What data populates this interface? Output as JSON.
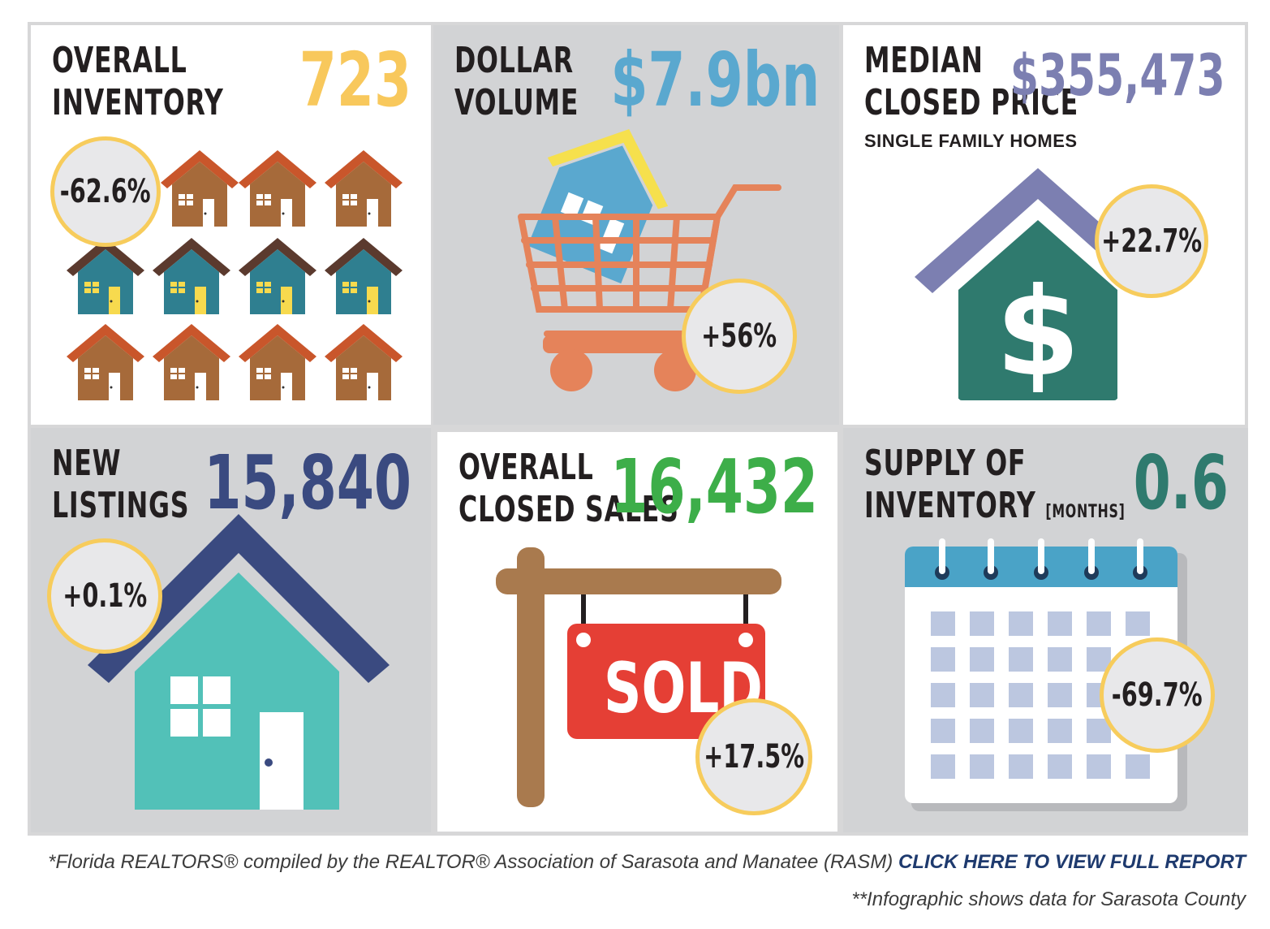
{
  "colors": {
    "inventory": "#f8c85c",
    "dollar": "#5aa8cf",
    "median": "#7c7fb1",
    "listings": "#3a4a80",
    "sales": "#3dae49",
    "supply": "#2f7a6e",
    "badge_border": "#f7cc5c",
    "link": "#1e3a6e"
  },
  "panels": {
    "inventory": {
      "title_line1": "OVERALL",
      "title_line2": "INVENTORY",
      "value": "723",
      "change": "-62.6%",
      "icon": "houses-grid-icon"
    },
    "dollar": {
      "title_line1": "DOLLAR",
      "title_line2": "VOLUME",
      "value": "$7.9bn",
      "change": "+56%",
      "icon": "shopping-cart-house-icon"
    },
    "median": {
      "title_line1": "MEDIAN",
      "title_line2": "CLOSED PRICE",
      "subtitle": "SINGLE FAMILY HOMES",
      "value": "$355,473",
      "change": "+22.7%",
      "icon": "house-dollar-icon"
    },
    "listings": {
      "title_line1": "NEW",
      "title_line2": "LISTINGS",
      "value": "15,840",
      "change": "+0.1%",
      "icon": "house-icon"
    },
    "sales": {
      "title_line1": "OVERALL",
      "title_line2": "CLOSED SALES",
      "value": "16,432",
      "change": "+17.5%",
      "sign_text": "SOLD",
      "icon": "sold-sign-icon"
    },
    "supply": {
      "title_line1": "SUPPLY OF",
      "title_line2": "INVENTORY",
      "title_suffix": "[MONTHS]",
      "value": "0.6",
      "change": "-69.7%",
      "icon": "calendar-icon"
    }
  },
  "footer": {
    "source_text": "*Florida REALTORS® compiled by the REALTOR® Association of Sarasota and Manatee (RASM)",
    "link_text": "CLICK HERE TO VIEW FULL REPORT",
    "note": "**Infographic shows data for Sarasota County"
  }
}
